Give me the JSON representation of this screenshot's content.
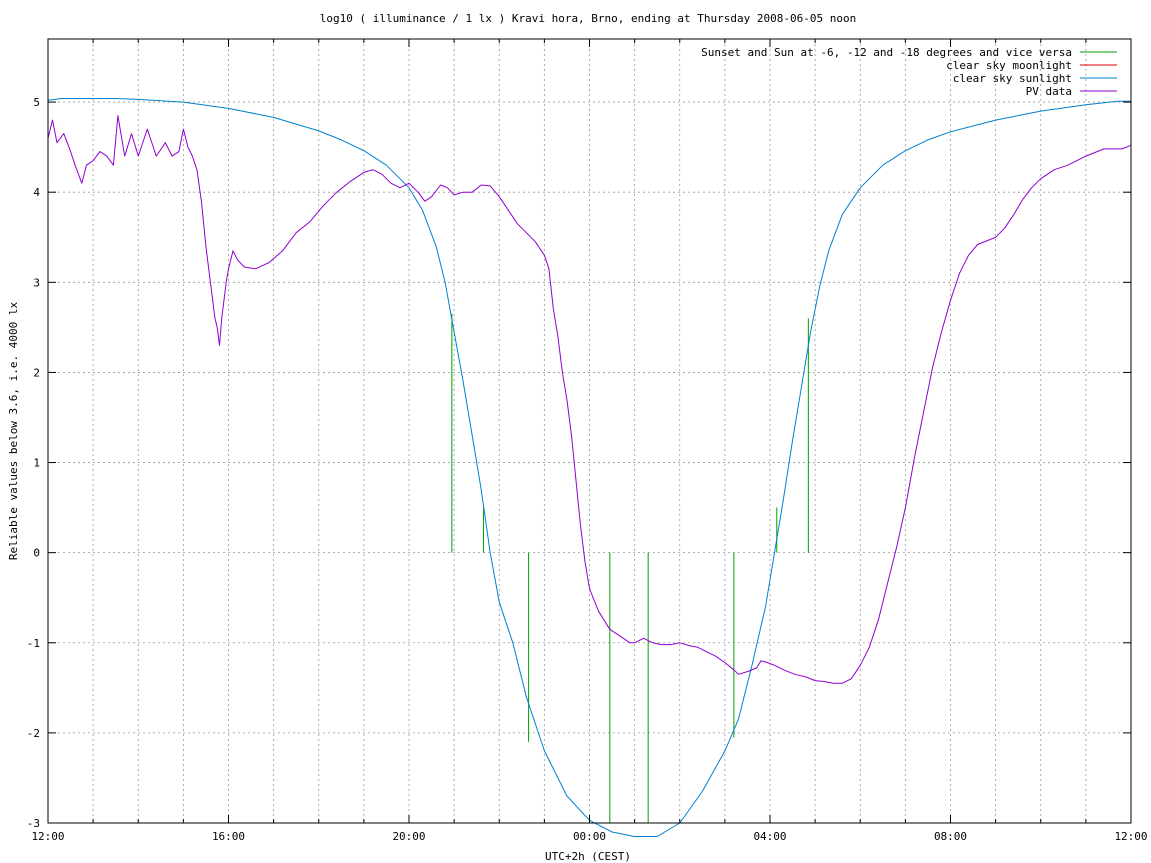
{
  "chart_data": {
    "type": "line",
    "title": "log10 ( illuminance / 1 lx ) Kravi hora, Brno, ending at Thursday 2008-06-05 noon",
    "xlabel": "UTC+2h (CEST)",
    "ylabel": "Reliable values below 3.6, i.e. 4000 lx",
    "xlim": [
      0,
      24
    ],
    "ylim": [
      -3,
      5.7
    ],
    "grid": true,
    "legend_position": "top-right",
    "x_ticks": [
      {
        "v": 0,
        "label": "12:00"
      },
      {
        "v": 4,
        "label": "16:00"
      },
      {
        "v": 8,
        "label": "20:00"
      },
      {
        "v": 12,
        "label": "00:00"
      },
      {
        "v": 16,
        "label": "04:00"
      },
      {
        "v": 20,
        "label": "08:00"
      },
      {
        "v": 24,
        "label": "12:00"
      }
    ],
    "x_minor_step": 1,
    "y_ticks": [
      {
        "v": 5,
        "label": "5"
      },
      {
        "v": 4,
        "label": "4"
      },
      {
        "v": 3,
        "label": "3"
      },
      {
        "v": 2,
        "label": "2"
      },
      {
        "v": 1,
        "label": "1"
      },
      {
        "v": 0,
        "label": "0"
      },
      {
        "v": -1,
        "label": "-1"
      },
      {
        "v": -2,
        "label": "-2"
      },
      {
        "v": -3,
        "label": "-3"
      }
    ],
    "series": [
      {
        "name": "Sunset and Sun at -6, -12 and -18 degrees and vice versa",
        "color": "#00a000",
        "kind": "vlines",
        "lines": [
          {
            "x": 8.95,
            "y0": 0,
            "y1": 2.65
          },
          {
            "x": 9.65,
            "y0": 0,
            "y1": 0.5
          },
          {
            "x": 10.65,
            "y0": 0,
            "y1": -2.1
          },
          {
            "x": 12.45,
            "y0": 0,
            "y1": -3
          },
          {
            "x": 13.3,
            "y0": 0,
            "y1": -3
          },
          {
            "x": 15.2,
            "y0": 0,
            "y1": -2.05
          },
          {
            "x": 16.15,
            "y0": 0,
            "y1": 0.5
          },
          {
            "x": 16.85,
            "y0": 0,
            "y1": 2.6
          }
        ]
      },
      {
        "name": "clear sky moonlight",
        "color": "#e00000",
        "kind": "line",
        "points": []
      },
      {
        "name": "clear sky sunlight",
        "color": "#0080d0",
        "kind": "line",
        "points": [
          [
            0,
            5.02
          ],
          [
            0.3,
            5.04
          ],
          [
            1,
            5.04
          ],
          [
            1.5,
            5.04
          ],
          [
            2,
            5.03
          ],
          [
            3,
            5.0
          ],
          [
            4,
            4.93
          ],
          [
            5,
            4.83
          ],
          [
            6,
            4.68
          ],
          [
            6.5,
            4.58
          ],
          [
            7,
            4.46
          ],
          [
            7.5,
            4.3
          ],
          [
            8,
            4.05
          ],
          [
            8.3,
            3.8
          ],
          [
            8.6,
            3.4
          ],
          [
            8.8,
            3.0
          ],
          [
            9.0,
            2.45
          ],
          [
            9.2,
            1.9
          ],
          [
            9.4,
            1.3
          ],
          [
            9.6,
            0.7
          ],
          [
            9.8,
            0.0
          ],
          [
            10.0,
            -0.55
          ],
          [
            10.3,
            -1.0
          ],
          [
            10.6,
            -1.6
          ],
          [
            11.0,
            -2.2
          ],
          [
            11.5,
            -2.7
          ],
          [
            12.0,
            -2.97
          ],
          [
            12.5,
            -3.1
          ],
          [
            13.0,
            -3.15
          ],
          [
            13.5,
            -3.15
          ],
          [
            14.0,
            -3.0
          ],
          [
            14.5,
            -2.65
          ],
          [
            15.0,
            -2.2
          ],
          [
            15.3,
            -1.85
          ],
          [
            15.6,
            -1.25
          ],
          [
            15.9,
            -0.6
          ],
          [
            16.1,
            0.0
          ],
          [
            16.3,
            0.6
          ],
          [
            16.5,
            1.25
          ],
          [
            16.7,
            1.85
          ],
          [
            16.9,
            2.45
          ],
          [
            17.1,
            2.95
          ],
          [
            17.3,
            3.35
          ],
          [
            17.6,
            3.75
          ],
          [
            18.0,
            4.05
          ],
          [
            18.5,
            4.3
          ],
          [
            19.0,
            4.46
          ],
          [
            19.5,
            4.58
          ],
          [
            20.0,
            4.67
          ],
          [
            21.0,
            4.8
          ],
          [
            22.0,
            4.9
          ],
          [
            23.0,
            4.97
          ],
          [
            23.7,
            5.01
          ],
          [
            24,
            5.01
          ]
        ]
      },
      {
        "name": "PV data",
        "color": "#9000d0",
        "kind": "line",
        "points": [
          [
            0,
            4.6
          ],
          [
            0.1,
            4.8
          ],
          [
            0.2,
            4.55
          ],
          [
            0.35,
            4.65
          ],
          [
            0.5,
            4.45
          ],
          [
            0.6,
            4.3
          ],
          [
            0.75,
            4.1
          ],
          [
            0.85,
            4.3
          ],
          [
            1.0,
            4.35
          ],
          [
            1.15,
            4.45
          ],
          [
            1.3,
            4.4
          ],
          [
            1.45,
            4.3
          ],
          [
            1.55,
            4.85
          ],
          [
            1.7,
            4.4
          ],
          [
            1.85,
            4.65
          ],
          [
            2.0,
            4.4
          ],
          [
            2.2,
            4.7
          ],
          [
            2.4,
            4.4
          ],
          [
            2.6,
            4.55
          ],
          [
            2.75,
            4.4
          ],
          [
            2.9,
            4.45
          ],
          [
            3.0,
            4.7
          ],
          [
            3.1,
            4.5
          ],
          [
            3.2,
            4.4
          ],
          [
            3.3,
            4.25
          ],
          [
            3.4,
            3.9
          ],
          [
            3.5,
            3.4
          ],
          [
            3.6,
            3.0
          ],
          [
            3.7,
            2.6
          ],
          [
            3.75,
            2.5
          ],
          [
            3.8,
            2.3
          ],
          [
            3.85,
            2.6
          ],
          [
            3.95,
            3.0
          ],
          [
            4.0,
            3.15
          ],
          [
            4.05,
            3.25
          ],
          [
            4.1,
            3.35
          ],
          [
            4.2,
            3.25
          ],
          [
            4.35,
            3.17
          ],
          [
            4.6,
            3.15
          ],
          [
            4.9,
            3.22
          ],
          [
            5.2,
            3.35
          ],
          [
            5.5,
            3.55
          ],
          [
            5.8,
            3.67
          ],
          [
            6.1,
            3.85
          ],
          [
            6.4,
            4.0
          ],
          [
            6.7,
            4.12
          ],
          [
            7.0,
            4.22
          ],
          [
            7.2,
            4.25
          ],
          [
            7.4,
            4.2
          ],
          [
            7.6,
            4.1
          ],
          [
            7.8,
            4.05
          ],
          [
            8.0,
            4.1
          ],
          [
            8.2,
            4.0
          ],
          [
            8.35,
            3.9
          ],
          [
            8.5,
            3.95
          ],
          [
            8.7,
            4.08
          ],
          [
            8.85,
            4.05
          ],
          [
            9.0,
            3.97
          ],
          [
            9.2,
            4.0
          ],
          [
            9.4,
            4.0
          ],
          [
            9.6,
            4.08
          ],
          [
            9.8,
            4.07
          ],
          [
            10.0,
            3.95
          ],
          [
            10.2,
            3.8
          ],
          [
            10.4,
            3.65
          ],
          [
            10.6,
            3.55
          ],
          [
            10.8,
            3.45
          ],
          [
            11.0,
            3.3
          ],
          [
            11.1,
            3.15
          ],
          [
            11.2,
            2.7
          ],
          [
            11.3,
            2.4
          ],
          [
            11.4,
            2.0
          ],
          [
            11.5,
            1.7
          ],
          [
            11.6,
            1.3
          ],
          [
            11.7,
            0.8
          ],
          [
            11.8,
            0.3
          ],
          [
            11.9,
            -0.1
          ],
          [
            12.0,
            -0.4
          ],
          [
            12.2,
            -0.65
          ],
          [
            12.45,
            -0.85
          ],
          [
            12.6,
            -0.9
          ],
          [
            12.75,
            -0.95
          ],
          [
            12.9,
            -1.0
          ],
          [
            13.0,
            -1.0
          ],
          [
            13.2,
            -0.95
          ],
          [
            13.4,
            -1.0
          ],
          [
            13.6,
            -1.02
          ],
          [
            13.8,
            -1.02
          ],
          [
            14.0,
            -1.0
          ],
          [
            14.2,
            -1.03
          ],
          [
            14.4,
            -1.05
          ],
          [
            14.6,
            -1.1
          ],
          [
            14.8,
            -1.15
          ],
          [
            15.0,
            -1.22
          ],
          [
            15.2,
            -1.3
          ],
          [
            15.3,
            -1.35
          ],
          [
            15.5,
            -1.32
          ],
          [
            15.7,
            -1.28
          ],
          [
            15.8,
            -1.2
          ],
          [
            15.95,
            -1.22
          ],
          [
            16.1,
            -1.25
          ],
          [
            16.3,
            -1.3
          ],
          [
            16.55,
            -1.35
          ],
          [
            16.8,
            -1.38
          ],
          [
            17.0,
            -1.42
          ],
          [
            17.2,
            -1.43
          ],
          [
            17.4,
            -1.45
          ],
          [
            17.6,
            -1.45
          ],
          [
            17.8,
            -1.4
          ],
          [
            18.0,
            -1.25
          ],
          [
            18.2,
            -1.05
          ],
          [
            18.4,
            -0.75
          ],
          [
            18.6,
            -0.35
          ],
          [
            18.8,
            0.05
          ],
          [
            19.0,
            0.5
          ],
          [
            19.2,
            1.05
          ],
          [
            19.4,
            1.55
          ],
          [
            19.6,
            2.05
          ],
          [
            19.8,
            2.45
          ],
          [
            20.0,
            2.8
          ],
          [
            20.2,
            3.1
          ],
          [
            20.4,
            3.3
          ],
          [
            20.6,
            3.42
          ],
          [
            20.8,
            3.46
          ],
          [
            21.0,
            3.5
          ],
          [
            21.2,
            3.6
          ],
          [
            21.4,
            3.75
          ],
          [
            21.6,
            3.92
          ],
          [
            21.8,
            4.05
          ],
          [
            22.0,
            4.15
          ],
          [
            22.3,
            4.25
          ],
          [
            22.6,
            4.3
          ],
          [
            23.0,
            4.4
          ],
          [
            23.4,
            4.48
          ],
          [
            23.8,
            4.48
          ],
          [
            24,
            4.52
          ]
        ]
      }
    ]
  }
}
